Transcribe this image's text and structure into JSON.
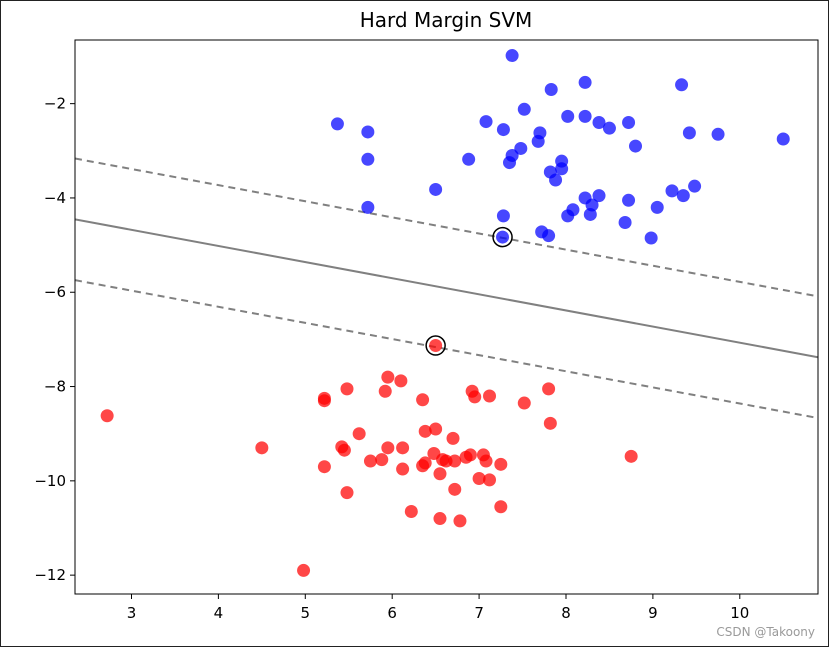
{
  "chart_data": {
    "type": "scatter",
    "title": "Hard Margin SVM",
    "xlabel": "",
    "ylabel": "",
    "xlim": [
      2.35,
      10.9
    ],
    "ylim": [
      -12.4,
      -0.65
    ],
    "xticks": [
      3,
      4,
      5,
      6,
      7,
      8,
      9,
      10
    ],
    "yticks": [
      -2,
      -4,
      -6,
      -8,
      -10,
      -12
    ],
    "xtick_labels": [
      "3",
      "4",
      "5",
      "6",
      "7",
      "8",
      "9",
      "10"
    ],
    "ytick_labels": [
      "−2",
      "−4",
      "−6",
      "−8",
      "−10",
      "−12"
    ],
    "series": [
      {
        "name": "class_blue",
        "color": "#0000ff",
        "points": [
          [
            7.38,
            -0.98
          ],
          [
            8.22,
            -1.55
          ],
          [
            7.83,
            -1.7
          ],
          [
            9.33,
            -1.6
          ],
          [
            7.52,
            -2.12
          ],
          [
            5.37,
            -2.43
          ],
          [
            5.72,
            -2.6
          ],
          [
            7.08,
            -2.38
          ],
          [
            7.28,
            -2.55
          ],
          [
            8.02,
            -2.27
          ],
          [
            8.22,
            -2.27
          ],
          [
            8.38,
            -2.4
          ],
          [
            8.5,
            -2.52
          ],
          [
            8.72,
            -2.4
          ],
          [
            9.42,
            -2.62
          ],
          [
            9.75,
            -2.65
          ],
          [
            10.5,
            -2.75
          ],
          [
            7.7,
            -2.62
          ],
          [
            7.48,
            -2.95
          ],
          [
            7.68,
            -2.8
          ],
          [
            8.8,
            -2.9
          ],
          [
            5.72,
            -3.18
          ],
          [
            6.88,
            -3.18
          ],
          [
            7.38,
            -3.1
          ],
          [
            7.35,
            -3.25
          ],
          [
            7.95,
            -3.22
          ],
          [
            7.95,
            -3.38
          ],
          [
            7.82,
            -3.45
          ],
          [
            7.88,
            -3.62
          ],
          [
            8.38,
            -3.95
          ],
          [
            8.22,
            -4.0
          ],
          [
            8.3,
            -4.15
          ],
          [
            8.08,
            -4.25
          ],
          [
            8.72,
            -4.05
          ],
          [
            9.22,
            -3.85
          ],
          [
            9.35,
            -3.95
          ],
          [
            9.48,
            -3.75
          ],
          [
            9.05,
            -4.2
          ],
          [
            6.5,
            -3.82
          ],
          [
            5.72,
            -4.2
          ],
          [
            8.28,
            -4.35
          ],
          [
            8.02,
            -4.38
          ],
          [
            7.28,
            -4.38
          ],
          [
            8.68,
            -4.52
          ],
          [
            7.72,
            -4.72
          ],
          [
            7.8,
            -4.8
          ],
          [
            8.98,
            -4.85
          ],
          [
            7.27,
            -4.83
          ]
        ]
      },
      {
        "name": "class_red",
        "color": "#ff0000",
        "points": [
          [
            6.5,
            -7.13
          ],
          [
            2.72,
            -8.62
          ],
          [
            5.95,
            -7.8
          ],
          [
            6.1,
            -7.88
          ],
          [
            5.48,
            -8.05
          ],
          [
            5.92,
            -8.1
          ],
          [
            6.92,
            -8.1
          ],
          [
            6.95,
            -8.22
          ],
          [
            7.12,
            -8.2
          ],
          [
            7.8,
            -8.05
          ],
          [
            5.22,
            -8.3
          ],
          [
            5.22,
            -8.25
          ],
          [
            6.35,
            -8.28
          ],
          [
            7.52,
            -8.35
          ],
          [
            7.82,
            -8.78
          ],
          [
            6.38,
            -8.95
          ],
          [
            6.5,
            -8.9
          ],
          [
            6.7,
            -9.1
          ],
          [
            5.62,
            -9.0
          ],
          [
            4.5,
            -9.3
          ],
          [
            5.42,
            -9.28
          ],
          [
            5.45,
            -9.35
          ],
          [
            5.95,
            -9.3
          ],
          [
            6.12,
            -9.3
          ],
          [
            6.48,
            -9.42
          ],
          [
            6.58,
            -9.55
          ],
          [
            6.62,
            -9.58
          ],
          [
            6.72,
            -9.58
          ],
          [
            6.85,
            -9.5
          ],
          [
            6.9,
            -9.45
          ],
          [
            7.05,
            -9.45
          ],
          [
            7.08,
            -9.58
          ],
          [
            7.25,
            -9.65
          ],
          [
            5.22,
            -9.7
          ],
          [
            5.75,
            -9.58
          ],
          [
            5.88,
            -9.55
          ],
          [
            6.12,
            -9.75
          ],
          [
            6.35,
            -9.68
          ],
          [
            6.38,
            -9.62
          ],
          [
            6.55,
            -9.85
          ],
          [
            7.0,
            -9.95
          ],
          [
            7.12,
            -9.98
          ],
          [
            6.72,
            -10.18
          ],
          [
            5.48,
            -10.25
          ],
          [
            6.22,
            -10.65
          ],
          [
            6.55,
            -10.8
          ],
          [
            6.78,
            -10.85
          ],
          [
            7.25,
            -10.55
          ],
          [
            4.98,
            -11.9
          ],
          [
            8.75,
            -9.48
          ]
        ]
      }
    ],
    "support_vectors": [
      [
        7.27,
        -4.83
      ],
      [
        6.5,
        -7.13
      ]
    ],
    "decision_boundary": {
      "color": "#808080",
      "slope": -0.342,
      "intercept": -3.65,
      "margin_offset": 1.29
    },
    "grid": false
  },
  "watermark": "CSDN @Takoony"
}
